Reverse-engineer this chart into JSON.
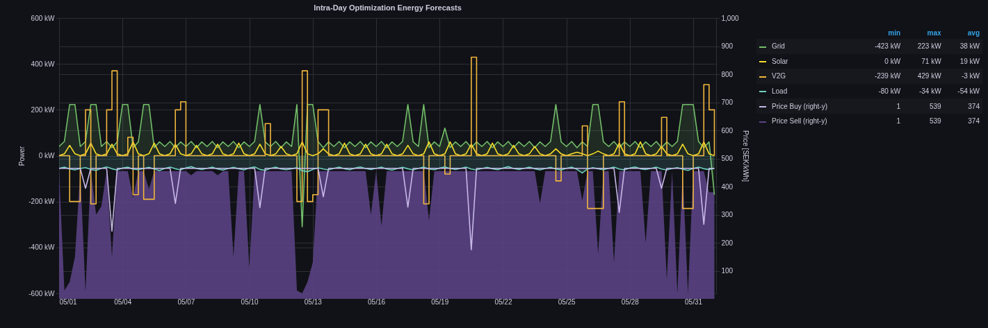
{
  "chart_data": {
    "type": "line",
    "title": "Intra-Day Optimization Energy Forecasts",
    "ylabel": "Power",
    "y2label": "Price [SEK/kWh]",
    "x": [
      "--05-01T00:00",
      "--05-01T06:00",
      "--05-01T12:00",
      "--05-01T18:00",
      "--05-02T00:00",
      "--05-02T06:00",
      "--05-02T12:00",
      "--05-02T18:00",
      "--05-03T00:00",
      "--05-03T06:00",
      "--05-03T12:00",
      "--05-03T18:00",
      "--05-04T00:00",
      "--05-04T06:00",
      "--05-04T12:00",
      "--05-04T18:00",
      "--05-05T00:00",
      "--05-05T06:00",
      "--05-05T12:00",
      "--05-05T18:00",
      "--05-06T00:00",
      "--05-06T06:00",
      "--05-06T12:00",
      "--05-06T18:00",
      "--05-07T00:00",
      "--05-07T06:00",
      "--05-07T12:00",
      "--05-07T18:00",
      "--05-08T00:00",
      "--05-08T06:00",
      "--05-08T12:00",
      "--05-08T18:00",
      "--05-09T00:00",
      "--05-09T06:00",
      "--05-09T12:00",
      "--05-09T18:00",
      "--05-10T00:00",
      "--05-10T06:00",
      "--05-10T12:00",
      "--05-10T18:00",
      "--05-11T00:00",
      "--05-11T06:00",
      "--05-11T12:00",
      "--05-11T18:00",
      "--05-12T00:00",
      "--05-12T06:00",
      "--05-12T12:00",
      "--05-12T18:00",
      "--05-13T00:00",
      "--05-13T06:00",
      "--05-13T12:00",
      "--05-13T18:00",
      "--05-14T00:00",
      "--05-14T06:00",
      "--05-14T12:00",
      "--05-14T18:00",
      "--05-15T00:00",
      "--05-15T06:00",
      "--05-15T12:00",
      "--05-15T18:00",
      "--05-16T00:00",
      "--05-16T06:00",
      "--05-16T12:00",
      "--05-16T18:00",
      "--05-17T00:00",
      "--05-17T06:00",
      "--05-17T12:00",
      "--05-17T18:00",
      "--05-18T00:00",
      "--05-18T06:00",
      "--05-18T12:00",
      "--05-18T18:00",
      "--05-19T00:00",
      "--05-19T06:00",
      "--05-19T12:00",
      "--05-19T18:00",
      "--05-20T00:00",
      "--05-20T06:00",
      "--05-20T12:00",
      "--05-20T18:00",
      "--05-21T00:00",
      "--05-21T06:00",
      "--05-21T12:00",
      "--05-21T18:00",
      "--05-22T00:00",
      "--05-22T06:00",
      "--05-22T12:00",
      "--05-22T18:00",
      "--05-23T00:00",
      "--05-23T06:00",
      "--05-23T12:00",
      "--05-23T18:00",
      "--05-24T00:00",
      "--05-24T06:00",
      "--05-24T12:00",
      "--05-24T18:00",
      "--05-25T00:00",
      "--05-25T06:00",
      "--05-25T12:00",
      "--05-25T18:00",
      "--05-26T00:00",
      "--05-26T06:00",
      "--05-26T12:00",
      "--05-26T18:00",
      "--05-27T00:00",
      "--05-27T06:00",
      "--05-27T12:00",
      "--05-27T18:00",
      "--05-28T00:00",
      "--05-28T06:00",
      "--05-28T12:00",
      "--05-28T18:00",
      "--05-29T00:00",
      "--05-29T06:00",
      "--05-29T12:00",
      "--05-29T18:00",
      "--05-30T00:00",
      "--05-30T06:00",
      "--05-30T12:00",
      "--05-30T18:00",
      "--05-31T00:00",
      "--05-31T06:00",
      "--05-31T12:00",
      "--05-31T18:00",
      "--06-01T00:00"
    ],
    "series": [
      {
        "name": "Grid",
        "type": "area",
        "color": "#73bf69",
        "values": [
          40,
          62,
          223,
          223,
          40,
          62,
          223,
          223,
          40,
          62,
          35,
          60,
          223,
          223,
          35,
          60,
          223,
          223,
          35,
          60,
          40,
          62,
          35,
          60,
          40,
          62,
          35,
          60,
          40,
          62,
          35,
          60,
          40,
          62,
          35,
          60,
          40,
          62,
          223,
          60,
          40,
          62,
          35,
          60,
          40,
          223,
          -310,
          223,
          223,
          62,
          35,
          60,
          40,
          62,
          35,
          60,
          40,
          62,
          35,
          60,
          40,
          62,
          35,
          60,
          40,
          62,
          223,
          60,
          40,
          223,
          35,
          60,
          40,
          120,
          35,
          60,
          40,
          62,
          35,
          60,
          40,
          62,
          35,
          60,
          40,
          62,
          35,
          60,
          40,
          62,
          35,
          60,
          40,
          62,
          223,
          60,
          40,
          62,
          35,
          60,
          40,
          223,
          223,
          60,
          40,
          62,
          35,
          60,
          40,
          62,
          35,
          60,
          40,
          62,
          35,
          60,
          40,
          62,
          223,
          223,
          223,
          62,
          35,
          60,
          -170
        ]
      },
      {
        "name": "Solar",
        "type": "line",
        "color": "#fade2a",
        "values": [
          0,
          8,
          45,
          8,
          0,
          8,
          55,
          8,
          0,
          8,
          50,
          8,
          0,
          8,
          60,
          8,
          0,
          8,
          55,
          8,
          0,
          8,
          50,
          8,
          0,
          8,
          45,
          8,
          0,
          8,
          50,
          8,
          0,
          8,
          55,
          8,
          0,
          8,
          50,
          8,
          0,
          8,
          40,
          8,
          0,
          8,
          60,
          8,
          0,
          8,
          30,
          8,
          0,
          8,
          55,
          8,
          0,
          8,
          50,
          8,
          0,
          8,
          50,
          8,
          0,
          8,
          45,
          8,
          0,
          8,
          60,
          8,
          0,
          8,
          60,
          8,
          0,
          8,
          50,
          8,
          0,
          8,
          55,
          8,
          0,
          8,
          45,
          8,
          0,
          8,
          40,
          8,
          0,
          8,
          30,
          8,
          0,
          8,
          15,
          8,
          0,
          8,
          20,
          8,
          0,
          8,
          55,
          8,
          0,
          8,
          60,
          8,
          0,
          8,
          40,
          8,
          0,
          8,
          50,
          8,
          0,
          8,
          60,
          8,
          0
        ]
      },
      {
        "name": "V2G",
        "type": "step",
        "color": "#f2b63c",
        "values": [
          0,
          0,
          -200,
          -200,
          0,
          200,
          -210,
          0,
          0,
          200,
          370,
          0,
          0,
          80,
          -170,
          0,
          -190,
          -190,
          0,
          0,
          0,
          0,
          200,
          235,
          0,
          0,
          0,
          0,
          0,
          0,
          0,
          0,
          0,
          0,
          0,
          0,
          0,
          0,
          0,
          140,
          0,
          0,
          0,
          0,
          0,
          -200,
          370,
          -200,
          -170,
          200,
          200,
          0,
          0,
          0,
          0,
          0,
          0,
          0,
          0,
          0,
          0,
          0,
          0,
          0,
          0,
          0,
          0,
          0,
          0,
          -210,
          0,
          0,
          0,
          -80,
          0,
          0,
          0,
          0,
          429,
          0,
          0,
          0,
          0,
          0,
          0,
          0,
          0,
          0,
          0,
          0,
          0,
          0,
          0,
          0,
          -110,
          0,
          0,
          0,
          0,
          130,
          -230,
          -230,
          -230,
          0,
          0,
          0,
          235,
          0,
          0,
          0,
          0,
          0,
          0,
          0,
          167,
          0,
          0,
          0,
          -230,
          -230,
          0,
          0,
          310,
          200,
          0
        ]
      },
      {
        "name": "Load",
        "type": "area",
        "color": "#6ed0c0",
        "values": [
          -55,
          -50,
          -58,
          -62,
          -56,
          -52,
          -60,
          -64,
          -55,
          -49,
          -57,
          -63,
          -54,
          -50,
          -59,
          -61,
          -56,
          -51,
          -58,
          -65,
          -55,
          -50,
          -57,
          -62,
          -53,
          -48,
          -56,
          -60,
          -55,
          -50,
          -58,
          -63,
          -56,
          -51,
          -57,
          -62,
          -54,
          -49,
          -60,
          -64,
          -55,
          -50,
          -58,
          -61,
          -57,
          -52,
          -66,
          -70,
          -60,
          -53,
          -58,
          -62,
          -55,
          -50,
          -57,
          -61,
          -54,
          -49,
          -56,
          -60,
          -55,
          -50,
          -58,
          -63,
          -56,
          -51,
          -57,
          -62,
          -55,
          -50,
          -58,
          -61,
          -54,
          -49,
          -56,
          -60,
          -55,
          -50,
          -58,
          -62,
          -56,
          -51,
          -57,
          -61,
          -54,
          -48,
          -56,
          -60,
          -55,
          -50,
          -57,
          -62,
          -56,
          -51,
          -58,
          -63,
          -55,
          -50,
          -60,
          -75,
          -58,
          -52,
          -57,
          -61,
          -55,
          -50,
          -58,
          -62,
          -54,
          -49,
          -57,
          -60,
          -55,
          -50,
          -58,
          -62,
          -56,
          -52,
          -59,
          -64,
          -55,
          -50,
          -57,
          -60,
          -55
        ]
      },
      {
        "name": "Price Buy (right-y)",
        "type": "line",
        "axis": "y2",
        "color": "#c8b8e8",
        "values": [
          465,
          465,
          465,
          465,
          465,
          394,
          465,
          465,
          465,
          465,
          241,
          465,
          465,
          465,
          465,
          465,
          465,
          465,
          465,
          465,
          465,
          465,
          340,
          465,
          465,
          465,
          465,
          465,
          465,
          465,
          465,
          465,
          465,
          465,
          465,
          465,
          465,
          465,
          325,
          465,
          465,
          465,
          465,
          465,
          465,
          465,
          465,
          465,
          465,
          465,
          364,
          465,
          465,
          465,
          465,
          465,
          465,
          465,
          465,
          465,
          465,
          465,
          465,
          465,
          465,
          465,
          327,
          465,
          465,
          465,
          465,
          465,
          465,
          465,
          465,
          465,
          465,
          465,
          175,
          465,
          465,
          465,
          465,
          465,
          465,
          465,
          465,
          465,
          465,
          465,
          465,
          465,
          465,
          465,
          465,
          465,
          465,
          465,
          465,
          465,
          465,
          465,
          465,
          465,
          465,
          465,
          308,
          465,
          465,
          465,
          465,
          465,
          465,
          465,
          394,
          465,
          465,
          465,
          465,
          465,
          465,
          465,
          266,
          465,
          465
        ]
      },
      {
        "name": "Price Sell (right-y)",
        "type": "area",
        "axis": "y2",
        "color": "#5a4283",
        "values": [
          455,
          30,
          60,
          150,
          455,
          25,
          455,
          300,
          330,
          455,
          150,
          455,
          455,
          455,
          360,
          455,
          455,
          390,
          455,
          455,
          455,
          455,
          455,
          455,
          455,
          440,
          455,
          455,
          455,
          455,
          440,
          455,
          455,
          150,
          455,
          455,
          110,
          455,
          455,
          455,
          455,
          455,
          455,
          455,
          455,
          30,
          20,
          60,
          130,
          455,
          455,
          455,
          455,
          455,
          455,
          455,
          455,
          455,
          455,
          300,
          455,
          260,
          455,
          455,
          455,
          455,
          455,
          455,
          455,
          455,
          280,
          455,
          455,
          455,
          455,
          455,
          455,
          455,
          455,
          455,
          455,
          455,
          455,
          455,
          455,
          455,
          455,
          455,
          455,
          455,
          455,
          340,
          455,
          455,
          455,
          455,
          455,
          455,
          455,
          350,
          455,
          455,
          160,
          455,
          455,
          130,
          455,
          455,
          455,
          455,
          455,
          200,
          455,
          455,
          455,
          70,
          455,
          20,
          455,
          20,
          455,
          455,
          455,
          380,
          380
        ]
      }
    ],
    "xlim": [
      "--05-01T00:00",
      "--06-01T02:00"
    ],
    "xticks": [
      {
        "value": "--05-01",
        "label": "05/01"
      },
      {
        "value": "--05-04",
        "label": "05/04"
      },
      {
        "value": "--05-07",
        "label": "05/07"
      },
      {
        "value": "--05-10",
        "label": "05/10"
      },
      {
        "value": "--05-13",
        "label": "05/13"
      },
      {
        "value": "--05-16",
        "label": "05/16"
      },
      {
        "value": "--05-19",
        "label": "05/19"
      },
      {
        "value": "--05-22",
        "label": "05/22"
      },
      {
        "value": "--05-25",
        "label": "05/25"
      },
      {
        "value": "--05-28",
        "label": "05/28"
      },
      {
        "value": "--05-31",
        "label": "05/31"
      }
    ],
    "ylim": [
      -600,
      600
    ],
    "yticks": [
      {
        "value": -600,
        "label": "-600 kW"
      },
      {
        "value": -400,
        "label": "-400 kW"
      },
      {
        "value": -200,
        "label": "-200 kW"
      },
      {
        "value": 0,
        "label": "0 kW"
      },
      {
        "value": 200,
        "label": "200 kW"
      },
      {
        "value": 400,
        "label": "400 kW"
      },
      {
        "value": 600,
        "label": "600 kW"
      }
    ],
    "y2lim": [
      20,
      1000
    ],
    "y2ticks": [
      100,
      200,
      300,
      400,
      500,
      600,
      700,
      800,
      900,
      {
        "value": 1000,
        "label": "1,000"
      }
    ],
    "grid": true,
    "legend": "right",
    "annotations": [
      "min",
      "max",
      "avg",
      "-423 kW",
      "223 kW",
      "38 kW",
      "0 kW",
      "71 kW",
      "19 kW",
      "-239 kW",
      "429 kW",
      "-3 kW",
      "-80 kW",
      "-34 kW",
      "-54 kW",
      "1",
      "539",
      "374",
      "1",
      "539",
      "374"
    ]
  }
}
